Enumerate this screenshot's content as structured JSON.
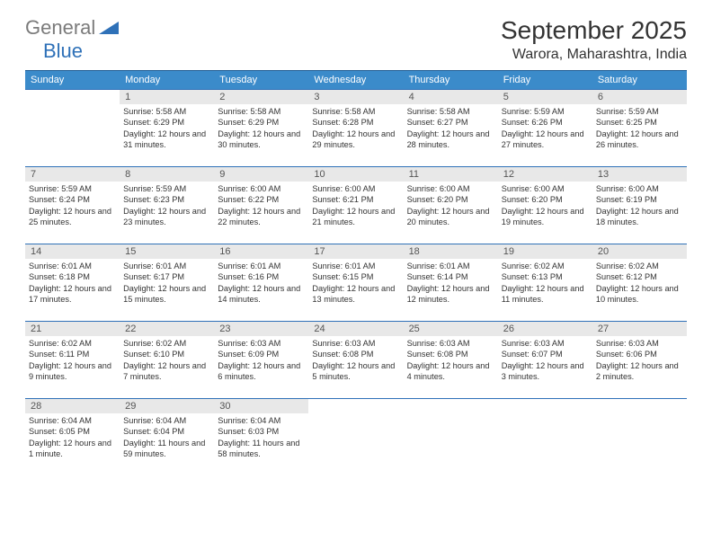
{
  "logo": {
    "gray": "General",
    "blue": "Blue"
  },
  "title": "September 2025",
  "location": "Warora, Maharashtra, India",
  "colors": {
    "header_bg": "#3b8bca",
    "header_border": "#1f5c93",
    "row_border": "#2f71b8",
    "daynum_bg": "#e8e8e8",
    "logo_gray": "#7b7b7b",
    "logo_blue": "#2f71b8"
  },
  "weekdays": [
    "Sunday",
    "Monday",
    "Tuesday",
    "Wednesday",
    "Thursday",
    "Friday",
    "Saturday"
  ],
  "firstDayOffset": 1,
  "daysInMonth": 30,
  "days": {
    "1": {
      "sunrise": "5:58 AM",
      "sunset": "6:29 PM",
      "daylight": "12 hours and 31 minutes."
    },
    "2": {
      "sunrise": "5:58 AM",
      "sunset": "6:29 PM",
      "daylight": "12 hours and 30 minutes."
    },
    "3": {
      "sunrise": "5:58 AM",
      "sunset": "6:28 PM",
      "daylight": "12 hours and 29 minutes."
    },
    "4": {
      "sunrise": "5:58 AM",
      "sunset": "6:27 PM",
      "daylight": "12 hours and 28 minutes."
    },
    "5": {
      "sunrise": "5:59 AM",
      "sunset": "6:26 PM",
      "daylight": "12 hours and 27 minutes."
    },
    "6": {
      "sunrise": "5:59 AM",
      "sunset": "6:25 PM",
      "daylight": "12 hours and 26 minutes."
    },
    "7": {
      "sunrise": "5:59 AM",
      "sunset": "6:24 PM",
      "daylight": "12 hours and 25 minutes."
    },
    "8": {
      "sunrise": "5:59 AM",
      "sunset": "6:23 PM",
      "daylight": "12 hours and 23 minutes."
    },
    "9": {
      "sunrise": "6:00 AM",
      "sunset": "6:22 PM",
      "daylight": "12 hours and 22 minutes."
    },
    "10": {
      "sunrise": "6:00 AM",
      "sunset": "6:21 PM",
      "daylight": "12 hours and 21 minutes."
    },
    "11": {
      "sunrise": "6:00 AM",
      "sunset": "6:20 PM",
      "daylight": "12 hours and 20 minutes."
    },
    "12": {
      "sunrise": "6:00 AM",
      "sunset": "6:20 PM",
      "daylight": "12 hours and 19 minutes."
    },
    "13": {
      "sunrise": "6:00 AM",
      "sunset": "6:19 PM",
      "daylight": "12 hours and 18 minutes."
    },
    "14": {
      "sunrise": "6:01 AM",
      "sunset": "6:18 PM",
      "daylight": "12 hours and 17 minutes."
    },
    "15": {
      "sunrise": "6:01 AM",
      "sunset": "6:17 PM",
      "daylight": "12 hours and 15 minutes."
    },
    "16": {
      "sunrise": "6:01 AM",
      "sunset": "6:16 PM",
      "daylight": "12 hours and 14 minutes."
    },
    "17": {
      "sunrise": "6:01 AM",
      "sunset": "6:15 PM",
      "daylight": "12 hours and 13 minutes."
    },
    "18": {
      "sunrise": "6:01 AM",
      "sunset": "6:14 PM",
      "daylight": "12 hours and 12 minutes."
    },
    "19": {
      "sunrise": "6:02 AM",
      "sunset": "6:13 PM",
      "daylight": "12 hours and 11 minutes."
    },
    "20": {
      "sunrise": "6:02 AM",
      "sunset": "6:12 PM",
      "daylight": "12 hours and 10 minutes."
    },
    "21": {
      "sunrise": "6:02 AM",
      "sunset": "6:11 PM",
      "daylight": "12 hours and 9 minutes."
    },
    "22": {
      "sunrise": "6:02 AM",
      "sunset": "6:10 PM",
      "daylight": "12 hours and 7 minutes."
    },
    "23": {
      "sunrise": "6:03 AM",
      "sunset": "6:09 PM",
      "daylight": "12 hours and 6 minutes."
    },
    "24": {
      "sunrise": "6:03 AM",
      "sunset": "6:08 PM",
      "daylight": "12 hours and 5 minutes."
    },
    "25": {
      "sunrise": "6:03 AM",
      "sunset": "6:08 PM",
      "daylight": "12 hours and 4 minutes."
    },
    "26": {
      "sunrise": "6:03 AM",
      "sunset": "6:07 PM",
      "daylight": "12 hours and 3 minutes."
    },
    "27": {
      "sunrise": "6:03 AM",
      "sunset": "6:06 PM",
      "daylight": "12 hours and 2 minutes."
    },
    "28": {
      "sunrise": "6:04 AM",
      "sunset": "6:05 PM",
      "daylight": "12 hours and 1 minute."
    },
    "29": {
      "sunrise": "6:04 AM",
      "sunset": "6:04 PM",
      "daylight": "11 hours and 59 minutes."
    },
    "30": {
      "sunrise": "6:04 AM",
      "sunset": "6:03 PM",
      "daylight": "11 hours and 58 minutes."
    }
  },
  "labels": {
    "sunrise": "Sunrise: ",
    "sunset": "Sunset: ",
    "daylight": "Daylight: "
  }
}
